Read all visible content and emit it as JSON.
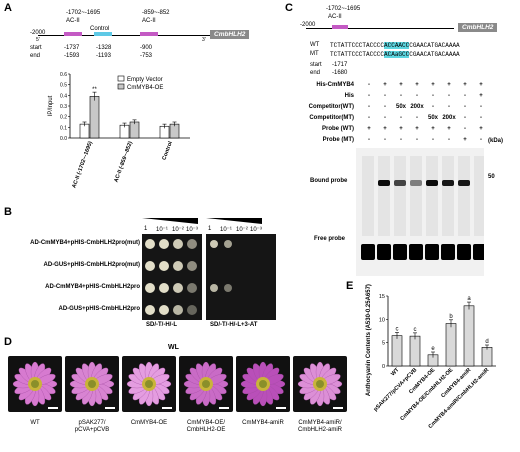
{
  "panels": {
    "A": "A",
    "B": "B",
    "C": "C",
    "D": "D",
    "E": "E"
  },
  "panelA": {
    "gene": "CmbHLH2",
    "pos_start": "-2000",
    "five_prime": "5'",
    "three_prime": "3'",
    "site1_coord": "-1702~-1695",
    "site2_coord": "-859~-852",
    "site_label": "AC-II",
    "control_label": "Control",
    "start_label": "start",
    "end_label": "end",
    "starts": [
      "-1737",
      "-1328",
      "-900"
    ],
    "ends": [
      "-1593",
      "-1193",
      "-753"
    ],
    "legend": [
      "Empty Vector",
      "CmMYB4-OE"
    ],
    "significance": "**"
  },
  "chartA": {
    "type": "bar",
    "ylabel": "IP/Input",
    "ylim": [
      0,
      0.6
    ],
    "yticks": [
      "0.0",
      "0.1",
      "0.2",
      "0.3",
      "0.4",
      "0.5",
      "0.6"
    ],
    "categories": [
      "AC-II (-1702~-1695)",
      "AC-II (-859~-852)",
      "Control"
    ],
    "series": [
      {
        "name": "Empty Vector",
        "values": [
          0.13,
          0.12,
          0.11
        ]
      },
      {
        "name": "CmMYB4-OE",
        "values": [
          0.39,
          0.15,
          0.13
        ]
      }
    ],
    "errors": [
      [
        0.02,
        0.02,
        0.02
      ],
      [
        0.04,
        0.02,
        0.02
      ]
    ]
  },
  "panelB": {
    "rows": [
      "AD-CmMYB4+pHIS-CmbHLH2pro(mut)",
      "AD-GUS+pHIS-CmbHLH2pro(mut)",
      "AD-CmMYB4+pHIS-CmbHLH2pro",
      "AD-GUS+pHIS-CmbHLH2pro"
    ],
    "dilutions": [
      "1",
      "10⁻¹",
      "10⁻²",
      "10⁻³"
    ],
    "media": [
      "SD/-T/-H/-L",
      "SD/-T/-H/-L+3-AT"
    ]
  },
  "panelC": {
    "gene": "CmbHLH2",
    "pos_start": "-2000",
    "site_coord": "-1702~-1695",
    "site_label": "AC-II",
    "wt_label": "WT",
    "mt_label": "MT",
    "wt_seq_a": "TCTATTCCCTACCCC",
    "wt_seq_hl": "ACCAACC",
    "wt_seq_b": "CGAACATGACAAAA",
    "mt_seq_a": "TCTATTCCCTACCCC",
    "mt_seq_hl": "ACAaGCC",
    "mt_seq_b": "CGAACATGACAAAA",
    "start_label": "start",
    "end_label": "end",
    "start_val": "-1717",
    "end_val": "-1680",
    "table_rows": [
      {
        "label": "His-CmMYB4",
        "cells": [
          "-",
          "+",
          "+",
          "+",
          "+",
          "+",
          "+",
          "+"
        ]
      },
      {
        "label": "His",
        "cells": [
          "-",
          "-",
          "-",
          "-",
          "-",
          "-",
          "-",
          "+"
        ]
      },
      {
        "label": "Competitor(WT)",
        "cells": [
          "-",
          "-",
          "50x",
          "200x",
          "-",
          "-",
          "-",
          "-"
        ]
      },
      {
        "label": "Competitor(MT)",
        "cells": [
          "-",
          "-",
          "-",
          "-",
          "50x",
          "200x",
          "-",
          "-"
        ]
      },
      {
        "label": "Probe (WT)",
        "cells": [
          "+",
          "+",
          "+",
          "+",
          "+",
          "+",
          "-",
          "+"
        ]
      },
      {
        "label": "Probe (MT)",
        "cells": [
          "-",
          "-",
          "-",
          "-",
          "-",
          "-",
          "+",
          "-"
        ]
      }
    ],
    "kda": "(kDa)",
    "marker": "50",
    "bound_probe": "Bound probe",
    "free_probe": "Free probe"
  },
  "panelD": {
    "condition": "WL",
    "lines": [
      "WT",
      "pSAK277/ pCVA+pCVB",
      "CmMYB4-OE",
      "CmMYB4-OE/ CmbHLH2-OE",
      "CmMYB4-amiR",
      "CmMYB4-amiR/ CmbHLH2-amiR"
    ]
  },
  "chartE": {
    "type": "bar",
    "ylabel": "Anthocyanin Contents (A530-0.25A657)g⁻¹FW",
    "ylim": [
      0,
      15
    ],
    "yticks": [
      "0",
      "5",
      "10",
      "15"
    ],
    "categories": [
      "WT",
      "pSAK277/pCVA+pCVB",
      "CmMYB4-OE",
      "CmMYB4-OE/CmbHLH2-OE",
      "CmMYB4-amiR",
      "CmMYB4-amiR/CmbHLH2-amiR"
    ],
    "values": [
      6.5,
      6.4,
      2.4,
      9.1,
      12.9,
      4.0
    ],
    "errors": [
      0.7,
      0.7,
      0.6,
      0.8,
      0.8,
      0.5
    ],
    "letters": [
      "c",
      "c",
      "e",
      "b",
      "a",
      "d"
    ]
  }
}
